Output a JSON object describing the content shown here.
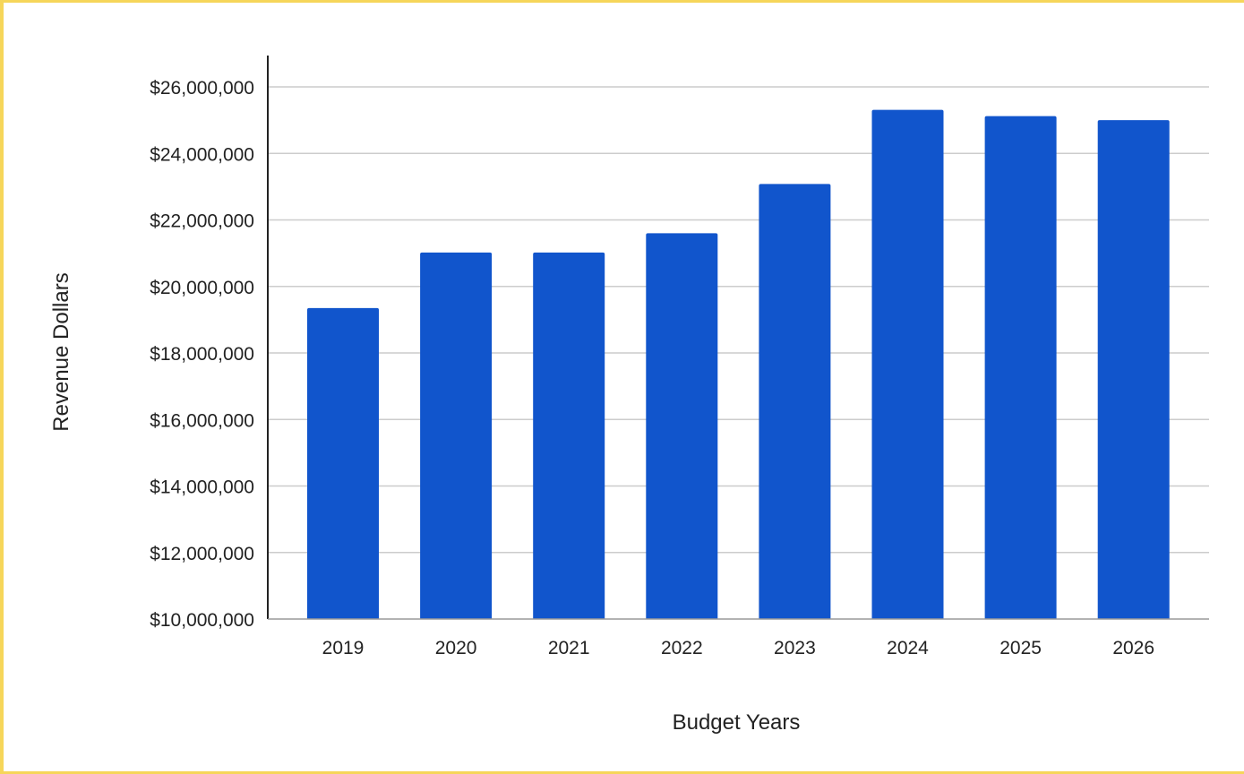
{
  "colors": {
    "bar": "#1155cc",
    "grid": "#cccccc",
    "axis": "#222222",
    "frame": "#f6d65a",
    "background": "#ffffff"
  },
  "chart_data": {
    "type": "bar",
    "title": "",
    "xlabel": "Budget Years",
    "ylabel": "Revenue Dollars",
    "categories": [
      "2019",
      "2020",
      "2021",
      "2022",
      "2023",
      "2024",
      "2025",
      "2026"
    ],
    "values": [
      19350000,
      21020000,
      21020000,
      21600000,
      23080000,
      25310000,
      25120000,
      25000000
    ],
    "ylim": [
      10000000,
      27000000
    ],
    "yticks": [
      10000000,
      12000000,
      14000000,
      16000000,
      18000000,
      20000000,
      22000000,
      24000000,
      26000000
    ],
    "ytick_labels": [
      "$10,000,000",
      "$12,000,000",
      "$14,000,000",
      "$16,000,000",
      "$18,000,000",
      "$20,000,000",
      "$22,000,000",
      "$24,000,000",
      "$26,000,000"
    ],
    "grid": true,
    "legend": "none"
  }
}
